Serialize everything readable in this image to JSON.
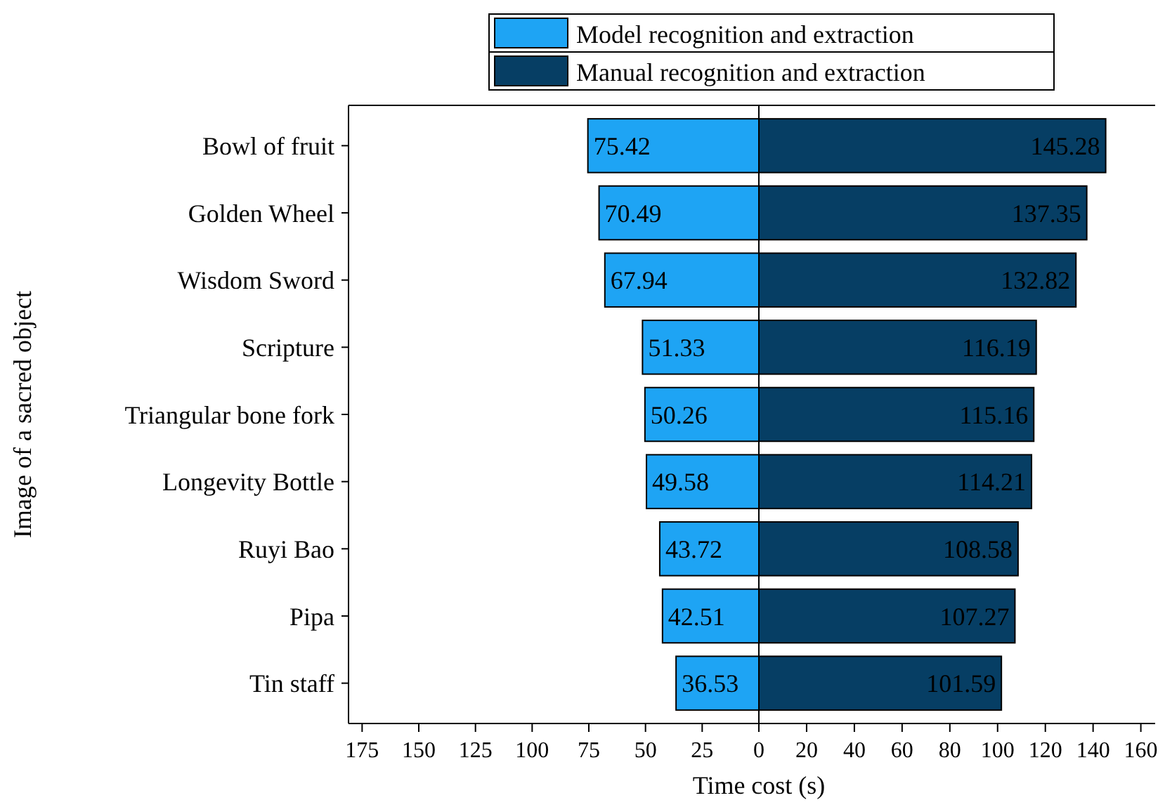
{
  "chart_data": [
    {
      "type": "bar",
      "orientation": "horizontal",
      "categories": [
        "Bowl of fruit",
        "Golden Wheel",
        "Wisdom Sword",
        "Scripture",
        "Triangular bone fork",
        "Longevity Bottle",
        "Ruyi Bao",
        "Pipa",
        "Tin staff"
      ],
      "series": [
        {
          "name": "Model recognition and extraction",
          "color": "#1ea4f4",
          "values": [
            75.42,
            70.49,
            67.94,
            51.33,
            50.26,
            49.58,
            43.72,
            42.51,
            36.53
          ]
        }
      ],
      "xlim": [
        181,
        0
      ],
      "xticks": [
        175,
        150,
        125,
        100,
        75,
        50,
        25,
        {
          "value": 0,
          "label": null
        }
      ],
      "ylabel": "Image of a sacred object",
      "legend": "top",
      "data_labels": true
    },
    {
      "type": "bar",
      "orientation": "horizontal",
      "categories": [
        null,
        null,
        null,
        null,
        null,
        null,
        null,
        null,
        null
      ],
      "series": [
        {
          "name": "Manual recognition and extraction",
          "color": "#063e64",
          "values": [
            145.28,
            137.35,
            132.82,
            116.19,
            115.16,
            114.21,
            108.58,
            107.27,
            101.59
          ]
        }
      ],
      "xlim": [
        0,
        166
      ],
      "xticks": [
        0,
        20,
        40,
        60,
        80,
        100,
        120,
        140,
        160
      ],
      "xlabel": "Time cost (s)",
      "legend": "top",
      "data_labels": true,
      "tick_labels": "x"
    }
  ]
}
